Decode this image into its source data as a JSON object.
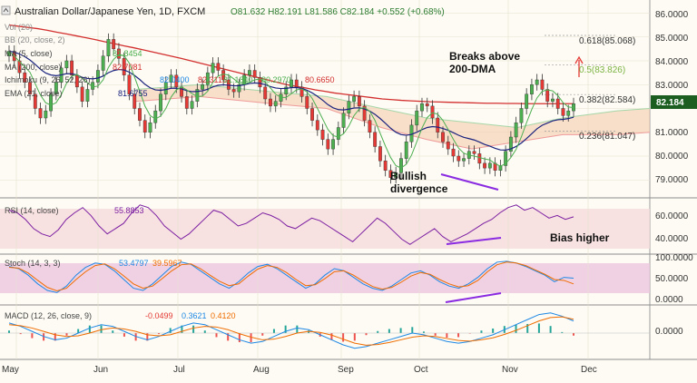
{
  "header": {
    "symbol": "Australian Dollar/Japanese Yen, 1D, FXCM",
    "ohlc": "O81.632  H82.191  L81.586  C82.184  +0.552 (+0.68%)",
    "collapse_icon": "collapse-arrow-icon"
  },
  "overlays": {
    "vol": "Vol (20)",
    "bb": "BB (20, close, 2)",
    "ma5": "MA (5, close)",
    "ma5_val": "81.8454",
    "ma200": "MA (200, close)",
    "ma200_val": "82.7081",
    "ichimoku": "Ichimoku (9, 26, 52, 26)",
    "ichimoku_vals": [
      "82.0400",
      "82.3115",
      "81.1840",
      "80.2970",
      "80.6650"
    ],
    "ema": "EMA (21, close)",
    "ema_val": "81.6755"
  },
  "annotations": {
    "breaks_1": "Breaks above",
    "breaks_2": "200-DMA",
    "bull_1": "Bullish",
    "bull_2": "divergence",
    "bias": "Bias higher"
  },
  "fib": {
    "f1": "0.618(85.068)",
    "f2": "0.5(83.826)",
    "f3": "0.382(82.584)",
    "f4": "0.236(81.047)"
  },
  "price_axis": {
    "ticks": [
      "86.0000",
      "85.0000",
      "84.0000",
      "83.0000",
      "82.0000",
      "81.0000",
      "80.0000",
      "79.0000"
    ],
    "last": "82.184"
  },
  "rsi": {
    "label": "RSI (14, close)",
    "value": "55.8853",
    "ticks": [
      "60.0000",
      "40.0000"
    ]
  },
  "stoch": {
    "label": "Stoch (14, 3, 3)",
    "k": "53.4797",
    "d": "39.5967",
    "ticks": [
      "100.0000",
      "50.0000",
      "0.0000"
    ]
  },
  "macd": {
    "label": "MACD (12, 26, close, 9)",
    "hist": "-0.0499",
    "macd": "0.3621",
    "signal": "0.4120",
    "tick": "0.0000"
  },
  "time_axis": [
    "May",
    "Jun",
    "Jul",
    "Aug",
    "Sep",
    "Oct",
    "Nov",
    "Dec"
  ],
  "colors": {
    "up": "#4caf50",
    "down": "#e53935",
    "ma200": "#d32f2f",
    "ema": "#1a237e",
    "ma5": "#4caf50",
    "rsi": "#7b1fa2",
    "stoch_k": "#1e88e5",
    "stoch_d": "#ef6c00",
    "annot": "#8a2be2",
    "fib": "#7cb342",
    "ichimoku": "#4caf50"
  },
  "chart_data": {
    "type": "candlestick",
    "title": "Australian Dollar/Japanese Yen, 1D, FXCM",
    "months": [
      "May",
      "Jun",
      "Jul",
      "Aug",
      "Sep",
      "Oct",
      "Nov",
      "Dec"
    ],
    "price_range": [
      78.4,
      86.4
    ],
    "close": [
      84.4,
      84.0,
      83.5,
      83.1,
      82.6,
      82.0,
      81.6,
      81.9,
      82.6,
      83.1,
      83.7,
      84.0,
      83.4,
      82.9,
      82.3,
      82.8,
      83.1,
      83.6,
      84.2,
      84.9,
      84.5,
      84.1,
      83.4,
      82.6,
      82.0,
      81.5,
      81.0,
      81.4,
      81.9,
      82.6,
      83.1,
      83.4,
      82.9,
      82.5,
      82.0,
      82.3,
      82.8,
      83.0,
      83.5,
      83.9,
      83.6,
      83.2,
      82.8,
      82.7,
      83.0,
      83.4,
      83.6,
      83.3,
      82.9,
      82.4,
      82.1,
      82.3,
      82.6,
      82.9,
      83.2,
      82.9,
      82.5,
      82.0,
      81.5,
      81.1,
      80.7,
      80.3,
      80.7,
      81.2,
      81.8,
      82.3,
      82.5,
      82.1,
      81.5,
      81.0,
      80.4,
      79.8,
      79.4,
      79.1,
      79.3,
      79.9,
      80.6,
      81.3,
      81.9,
      82.2,
      82.1,
      81.6,
      81.0,
      80.6,
      80.3,
      80.0,
      79.8,
      79.9,
      80.2,
      80.1,
      79.7,
      79.5,
      79.7,
      79.4,
      79.6,
      80.2,
      80.8,
      81.4,
      82.0,
      82.6,
      83.0,
      83.2,
      82.8,
      82.3,
      82.4,
      82.0,
      81.7,
      81.9,
      82.2
    ],
    "ma200": [
      85.5,
      85.45,
      85.4,
      85.35,
      85.28,
      85.2,
      85.13,
      85.05,
      84.97,
      84.89,
      84.8,
      84.72,
      84.63,
      84.55,
      84.46,
      84.37,
      84.28,
      84.19,
      84.1,
      84.0,
      83.9,
      83.8,
      83.7,
      83.6,
      83.5,
      83.4,
      83.3,
      83.2,
      83.1,
      83.0,
      82.93,
      82.86,
      82.78,
      82.72,
      82.65,
      82.6,
      82.55,
      82.5,
      82.45,
      82.4,
      82.37,
      82.34,
      82.32,
      82.3,
      82.28,
      82.27,
      82.26,
      82.25,
      82.24,
      82.23,
      82.22,
      82.22,
      82.21,
      82.21,
      82.2,
      82.2,
      82.2,
      82.2,
      82.2,
      82.2
    ],
    "fib_levels": [
      {
        "ratio": 0.618,
        "value": 85.068
      },
      {
        "ratio": 0.5,
        "value": 83.826
      },
      {
        "ratio": 0.382,
        "value": 82.584
      },
      {
        "ratio": 0.236,
        "value": 81.047
      }
    ],
    "last_close": 82.184,
    "rsi": [
      62,
      60,
      55,
      48,
      44,
      42,
      47,
      55,
      60,
      64,
      58,
      50,
      44,
      48,
      52,
      60,
      66,
      64,
      58,
      50,
      45,
      40,
      44,
      50,
      56,
      62,
      60,
      55,
      50,
      52,
      56,
      60,
      58,
      55,
      50,
      48,
      52,
      56,
      54,
      50,
      46,
      42,
      38,
      44,
      50,
      56,
      52,
      46,
      40,
      36,
      40,
      44,
      48,
      42,
      38,
      41,
      44,
      48,
      52,
      55,
      60,
      64,
      66,
      62,
      64,
      60,
      56,
      58,
      55,
      57
    ],
    "rsi_range": [
      30,
      70
    ],
    "stoch_k": [
      80,
      75,
      60,
      40,
      25,
      20,
      35,
      60,
      78,
      88,
      85,
      70,
      50,
      30,
      25,
      40,
      60,
      80,
      90,
      85,
      70,
      55,
      40,
      30,
      45,
      65,
      80,
      85,
      75,
      60,
      45,
      30,
      40,
      60,
      75,
      70,
      55,
      40,
      30,
      25,
      35,
      50,
      65,
      70,
      60,
      45,
      35,
      30,
      40,
      55,
      75,
      90,
      92,
      88,
      80,
      70,
      60,
      45,
      55,
      53
    ],
    "stoch_d": [
      78,
      76,
      65,
      48,
      32,
      24,
      30,
      50,
      68,
      82,
      86,
      75,
      58,
      40,
      30,
      35,
      52,
      70,
      84,
      86,
      75,
      60,
      46,
      36,
      40,
      58,
      74,
      82,
      78,
      66,
      50,
      36,
      38,
      52,
      68,
      70,
      60,
      46,
      34,
      28,
      32,
      44,
      58,
      66,
      62,
      50,
      40,
      33,
      36,
      48,
      68,
      84,
      90,
      88,
      82,
      72,
      62,
      50,
      48,
      40
    ],
    "stoch_range": [
      0,
      100
    ],
    "macd_line": [
      0.3,
      0.2,
      0.05,
      -0.1,
      -0.2,
      -0.15,
      0.0,
      0.15,
      0.25,
      0.2,
      0.05,
      -0.1,
      -0.2,
      -0.1,
      0.05,
      0.2,
      0.3,
      0.25,
      0.1,
      -0.05,
      -0.2,
      -0.3,
      -0.25,
      -0.1,
      0.05,
      0.15,
      0.1,
      -0.05,
      -0.2,
      -0.35,
      -0.45,
      -0.4,
      -0.3,
      -0.2,
      -0.1,
      0.0,
      -0.05,
      -0.15,
      -0.25,
      -0.3,
      -0.25,
      -0.15,
      -0.05,
      0.1,
      0.25,
      0.4,
      0.55,
      0.6,
      0.5,
      0.36
    ],
    "macd_signal": [
      0.25,
      0.22,
      0.15,
      0.05,
      -0.05,
      -0.1,
      -0.08,
      0.0,
      0.1,
      0.15,
      0.12,
      0.05,
      -0.05,
      -0.08,
      -0.05,
      0.05,
      0.15,
      0.2,
      0.18,
      0.1,
      -0.02,
      -0.12,
      -0.2,
      -0.18,
      -0.1,
      0.0,
      0.05,
      0.02,
      -0.06,
      -0.18,
      -0.3,
      -0.36,
      -0.34,
      -0.28,
      -0.2,
      -0.12,
      -0.08,
      -0.1,
      -0.16,
      -0.22,
      -0.24,
      -0.2,
      -0.14,
      -0.04,
      0.08,
      0.22,
      0.36,
      0.46,
      0.48,
      0.41
    ],
    "macd_range": [
      -0.7,
      0.7
    ]
  }
}
